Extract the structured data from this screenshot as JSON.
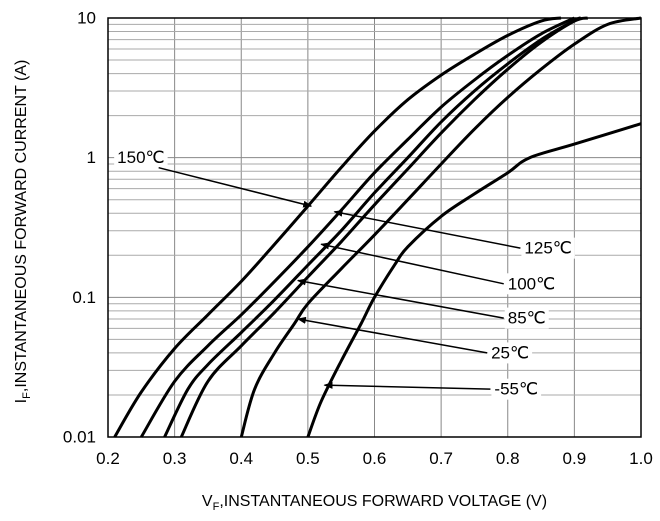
{
  "chart_data": {
    "type": "line",
    "xlabel": "V",
    "xlabel_sub": "F",
    "xlabel_rest": ",INSTANTANEOUS FORWARD VOLTAGE (V)",
    "ylabel": "I",
    "ylabel_sub": "F",
    "ylabel_rest": ",INSTANTANEOUS FORWARD CURRENT (A)",
    "xlim": [
      0.2,
      1.0
    ],
    "ylim": [
      0.01,
      10
    ],
    "yscale": "log",
    "grid": true,
    "x_ticks": [
      "0.2",
      "0.3",
      "0.4",
      "0.5",
      "0.6",
      "0.7",
      "0.8",
      "0.9",
      "1.0"
    ],
    "y_ticks": [
      "0.01",
      "0.1",
      "1",
      "10"
    ],
    "series": [
      {
        "name": "150℃",
        "x": [
          0.21,
          0.25,
          0.3,
          0.35,
          0.4,
          0.45,
          0.5,
          0.55,
          0.6,
          0.65,
          0.7,
          0.75,
          0.8,
          0.85,
          0.88
        ],
        "y": [
          0.01,
          0.021,
          0.043,
          0.075,
          0.13,
          0.24,
          0.45,
          0.85,
          1.55,
          2.6,
          3.9,
          5.5,
          7.5,
          9.5,
          10
        ]
      },
      {
        "name": "125℃",
        "x": [
          0.25,
          0.3,
          0.35,
          0.4,
          0.45,
          0.5,
          0.55,
          0.6,
          0.65,
          0.7,
          0.75,
          0.8,
          0.85,
          0.9
        ],
        "y": [
          0.01,
          0.025,
          0.045,
          0.075,
          0.13,
          0.23,
          0.42,
          0.78,
          1.35,
          2.3,
          3.6,
          5.4,
          7.7,
          10
        ]
      },
      {
        "name": "100℃",
        "x": [
          0.285,
          0.32,
          0.35,
          0.4,
          0.45,
          0.5,
          0.55,
          0.6,
          0.65,
          0.7,
          0.75,
          0.8,
          0.85,
          0.9,
          0.91
        ],
        "y": [
          0.01,
          0.022,
          0.033,
          0.056,
          0.096,
          0.17,
          0.3,
          0.56,
          1.0,
          1.8,
          3.0,
          4.7,
          7.0,
          9.6,
          10
        ]
      },
      {
        "name": "85℃",
        "x": [
          0.31,
          0.35,
          0.4,
          0.45,
          0.5,
          0.55,
          0.6,
          0.65,
          0.7,
          0.75,
          0.8,
          0.85,
          0.9,
          0.92
        ],
        "y": [
          0.01,
          0.025,
          0.045,
          0.078,
          0.14,
          0.25,
          0.46,
          0.83,
          1.5,
          2.6,
          4.3,
          6.7,
          9.5,
          10
        ]
      },
      {
        "name": "25℃",
        "x": [
          0.4,
          0.42,
          0.45,
          0.48,
          0.5,
          0.55,
          0.6,
          0.65,
          0.7,
          0.75,
          0.8,
          0.85,
          0.9,
          0.95,
          1.0
        ],
        "y": [
          0.01,
          0.022,
          0.04,
          0.065,
          0.09,
          0.16,
          0.28,
          0.5,
          0.9,
          1.6,
          2.7,
          4.3,
          6.5,
          9.0,
          10
        ]
      },
      {
        "name": "-55℃",
        "x": [
          0.5,
          0.52,
          0.55,
          0.58,
          0.6,
          0.63,
          0.65,
          0.7,
          0.75,
          0.8,
          0.833,
          0.9,
          1.0
        ],
        "y": [
          0.01,
          0.018,
          0.035,
          0.065,
          0.1,
          0.17,
          0.23,
          0.38,
          0.55,
          0.78,
          1.0,
          1.25,
          1.75
        ]
      }
    ],
    "annotations": [
      {
        "label": "150℃",
        "lx": 0.285,
        "ly": 1.0,
        "tx": 0.505,
        "ty": 0.45
      },
      {
        "label": "125℃",
        "lx": 0.825,
        "ly": 0.225,
        "tx": 0.54,
        "ty": 0.41
      },
      {
        "label": "100℃",
        "lx": 0.8,
        "ly": 0.125,
        "tx": 0.52,
        "ty": 0.24
      },
      {
        "label": "85℃",
        "lx": 0.8,
        "ly": 0.071,
        "tx": 0.485,
        "ty": 0.132
      },
      {
        "label": "25℃",
        "lx": 0.775,
        "ly": 0.04,
        "tx": 0.485,
        "ty": 0.07
      },
      {
        "label": "-55℃",
        "lx": 0.78,
        "ly": 0.022,
        "tx": 0.525,
        "ty": 0.0235
      }
    ]
  }
}
